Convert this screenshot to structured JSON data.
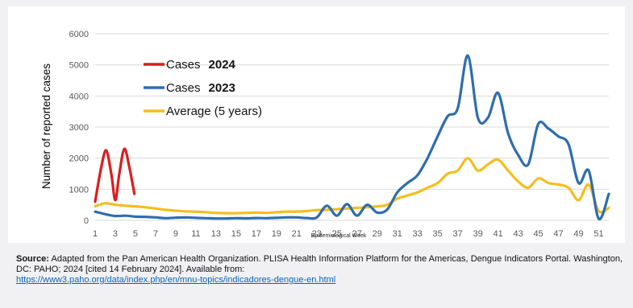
{
  "chart_data": {
    "type": "line",
    "title": "",
    "xlabel": "Epidemiological Week",
    "ylabel": "Number of reported cases",
    "ylim": [
      0,
      6000
    ],
    "xlim": [
      1,
      52
    ],
    "y_ticks": [
      0,
      1000,
      2000,
      3000,
      4000,
      5000,
      6000
    ],
    "x_ticks": [
      1,
      3,
      5,
      7,
      9,
      11,
      13,
      15,
      17,
      19,
      21,
      23,
      25,
      27,
      29,
      31,
      33,
      35,
      37,
      39,
      41,
      43,
      45,
      47,
      49,
      51
    ],
    "grid": true,
    "legend_placement": "top-left",
    "series": [
      {
        "name": "Cases",
        "year": "2024",
        "color": "#dd1c1c",
        "points": [
          [
            1,
            600
          ],
          [
            1.6,
            1700
          ],
          [
            2.1,
            2250
          ],
          [
            2.6,
            1500
          ],
          [
            3,
            650
          ],
          [
            3.4,
            1500
          ],
          [
            3.9,
            2300
          ],
          [
            4.4,
            1700
          ],
          [
            4.9,
            850
          ]
        ]
      },
      {
        "name": "Cases",
        "year": "2023",
        "color": "#2e6daf",
        "points": [
          [
            1,
            280
          ],
          [
            2,
            200
          ],
          [
            3,
            140
          ],
          [
            4,
            150
          ],
          [
            5,
            120
          ],
          [
            6,
            110
          ],
          [
            7,
            95
          ],
          [
            8,
            70
          ],
          [
            9,
            85
          ],
          [
            10,
            95
          ],
          [
            11,
            80
          ],
          [
            12,
            70
          ],
          [
            13,
            60
          ],
          [
            14,
            60
          ],
          [
            15,
            70
          ],
          [
            16,
            65
          ],
          [
            17,
            75
          ],
          [
            18,
            70
          ],
          [
            19,
            80
          ],
          [
            20,
            95
          ],
          [
            21,
            95
          ],
          [
            22,
            75
          ],
          [
            23,
            90
          ],
          [
            24,
            470
          ],
          [
            25,
            150
          ],
          [
            26,
            520
          ],
          [
            27,
            150
          ],
          [
            28,
            500
          ],
          [
            29,
            250
          ],
          [
            30,
            350
          ],
          [
            31,
            900
          ],
          [
            32,
            1200
          ],
          [
            33,
            1450
          ],
          [
            34,
            2000
          ],
          [
            35,
            2700
          ],
          [
            36,
            3350
          ],
          [
            37,
            3600
          ],
          [
            38,
            5300
          ],
          [
            39,
            3300
          ],
          [
            40,
            3300
          ],
          [
            41,
            4100
          ],
          [
            42,
            2800
          ],
          [
            43,
            2100
          ],
          [
            44,
            1800
          ],
          [
            45,
            3100
          ],
          [
            46,
            2950
          ],
          [
            47,
            2700
          ],
          [
            48,
            2450
          ],
          [
            49,
            1200
          ],
          [
            50,
            1600
          ],
          [
            51,
            50
          ],
          [
            52,
            850
          ]
        ]
      },
      {
        "name": "Average (5 years)",
        "year": "",
        "color": "#f5bd1f",
        "points": [
          [
            1,
            450
          ],
          [
            2,
            550
          ],
          [
            3,
            500
          ],
          [
            4,
            470
          ],
          [
            5,
            450
          ],
          [
            6,
            420
          ],
          [
            7,
            380
          ],
          [
            8,
            340
          ],
          [
            9,
            310
          ],
          [
            10,
            290
          ],
          [
            11,
            280
          ],
          [
            12,
            260
          ],
          [
            13,
            240
          ],
          [
            14,
            230
          ],
          [
            15,
            230
          ],
          [
            16,
            240
          ],
          [
            17,
            250
          ],
          [
            18,
            240
          ],
          [
            19,
            260
          ],
          [
            20,
            280
          ],
          [
            21,
            280
          ],
          [
            22,
            300
          ],
          [
            23,
            330
          ],
          [
            24,
            340
          ],
          [
            25,
            360
          ],
          [
            26,
            380
          ],
          [
            27,
            400
          ],
          [
            28,
            420
          ],
          [
            29,
            450
          ],
          [
            30,
            500
          ],
          [
            31,
            700
          ],
          [
            32,
            800
          ],
          [
            33,
            900
          ],
          [
            34,
            1050
          ],
          [
            35,
            1200
          ],
          [
            36,
            1500
          ],
          [
            37,
            1600
          ],
          [
            38,
            2000
          ],
          [
            39,
            1600
          ],
          [
            40,
            1800
          ],
          [
            41,
            1950
          ],
          [
            42,
            1600
          ],
          [
            43,
            1250
          ],
          [
            44,
            1050
          ],
          [
            45,
            1350
          ],
          [
            46,
            1200
          ],
          [
            47,
            1150
          ],
          [
            48,
            1050
          ],
          [
            49,
            650
          ],
          [
            50,
            1150
          ],
          [
            51,
            300
          ],
          [
            52,
            400
          ]
        ]
      }
    ]
  },
  "source": {
    "label": "Source:",
    "text": " Adapted from the Pan American Health Organization. PLISA Health Information Platform for the Americas, Dengue Indicators Portal. Washington, DC: PAHO; 2024 [cited 14 February 2024]. Available from: ",
    "link": "https://www3.paho.org/data/index.php/en/mnu-topics/indicadores-dengue-en.html"
  }
}
